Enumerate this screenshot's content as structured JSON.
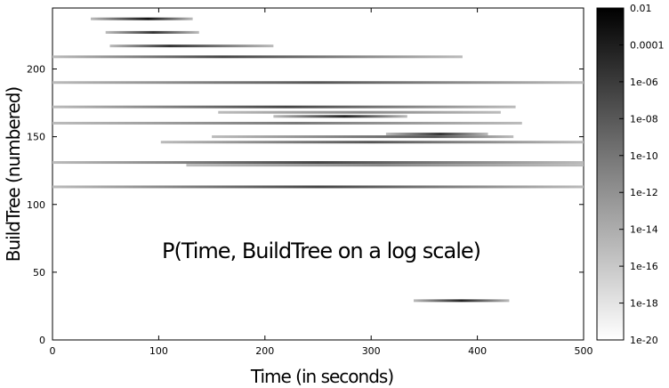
{
  "chart_data": {
    "type": "heatmap",
    "annotation": "P(Time, BuildTree on a log scale)",
    "xlabel": "Time (in seconds)",
    "ylabel": "BuildTree (numbered)",
    "xlim": [
      0,
      500
    ],
    "ylim": [
      0,
      245
    ],
    "x_ticks": [
      0,
      100,
      200,
      300,
      400,
      500
    ],
    "y_ticks": [
      0,
      50,
      100,
      150,
      200
    ],
    "colorbar": {
      "scale": "log",
      "min": "1e-20",
      "max": "0.01",
      "tick_labels": [
        "0.01",
        "0.0001",
        "1e-06",
        "1e-08",
        "1e-10",
        "1e-12",
        "1e-14",
        "1e-16",
        "1e-18",
        "1e-20"
      ]
    },
    "segments": [
      {
        "buildtree": 237,
        "x_start": 36,
        "x_end": 132,
        "peak_x": 90,
        "shade": "#111111"
      },
      {
        "buildtree": 227,
        "x_start": 50,
        "x_end": 138,
        "peak_x": 95,
        "shade": "#333333"
      },
      {
        "buildtree": 217,
        "x_start": 54,
        "x_end": 208,
        "peak_x": 110,
        "shade": "#333333"
      },
      {
        "buildtree": 209,
        "x_start": 0,
        "x_end": 386,
        "peak_x": 160,
        "shade": "#444444"
      },
      {
        "buildtree": 190,
        "x_start": 0,
        "x_end": 500,
        "peak_x": 250,
        "shade": "#555555"
      },
      {
        "buildtree": 172,
        "x_start": 0,
        "x_end": 436,
        "peak_x": 220,
        "shade": "#444444"
      },
      {
        "buildtree": 168,
        "x_start": 156,
        "x_end": 422,
        "peak_x": 290,
        "shade": "#888888"
      },
      {
        "buildtree": 165,
        "x_start": 208,
        "x_end": 334,
        "peak_x": 275,
        "shade": "#222222"
      },
      {
        "buildtree": 160,
        "x_start": 0,
        "x_end": 442,
        "peak_x": 230,
        "shade": "#777777"
      },
      {
        "buildtree": 152,
        "x_start": 314,
        "x_end": 410,
        "peak_x": 365,
        "shade": "#333333"
      },
      {
        "buildtree": 150,
        "x_start": 150,
        "x_end": 434,
        "peak_x": 360,
        "shade": "#555555"
      },
      {
        "buildtree": 146,
        "x_start": 102,
        "x_end": 500,
        "peak_x": 300,
        "shade": "#555555"
      },
      {
        "buildtree": 131,
        "x_start": 0,
        "x_end": 500,
        "peak_x": 250,
        "shade": "#444444"
      },
      {
        "buildtree": 129,
        "x_start": 126,
        "x_end": 500,
        "peak_x": 310,
        "shade": "#888888"
      },
      {
        "buildtree": 113,
        "x_start": 0,
        "x_end": 500,
        "peak_x": 250,
        "shade": "#444444"
      },
      {
        "buildtree": 29,
        "x_start": 340,
        "x_end": 430,
        "peak_x": 385,
        "shade": "#222222"
      }
    ]
  }
}
